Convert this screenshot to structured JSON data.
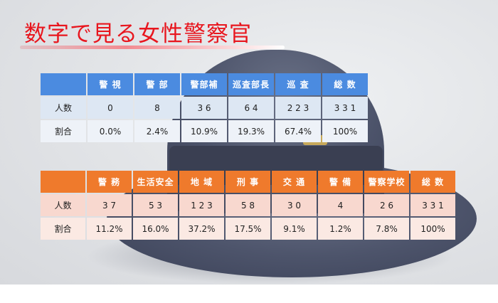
{
  "title": "数字で見る女性警察官",
  "rank_table": {
    "headers": [
      "警 視",
      "警 部",
      "警部補",
      "巡査部長",
      "巡 査",
      "総 数"
    ],
    "rows": [
      {
        "label": "人数",
        "values": [
          "0",
          "8",
          "3 6",
          "6 4",
          "2 2 3",
          "3 3 1"
        ]
      },
      {
        "label": "割合",
        "values": [
          "0.0%",
          "2.4%",
          "10.9%",
          "19.3%",
          "67.4%",
          "100%"
        ]
      }
    ]
  },
  "dept_table": {
    "headers": [
      "警 務",
      "生活安全",
      "地 域",
      "刑 事",
      "交 通",
      "警 備",
      "警察学校",
      "総 数"
    ],
    "rows": [
      {
        "label": "人数",
        "values": [
          "3 7",
          "5 3",
          "1 2 3",
          "5 8",
          "3 0",
          "4",
          "2 6",
          "3 3 1"
        ]
      },
      {
        "label": "割合",
        "values": [
          "11.2%",
          "16.0%",
          "37.2%",
          "17.5%",
          "9.1%",
          "1.2%",
          "7.8%",
          "100%"
        ]
      }
    ]
  },
  "colors": {
    "title": "#e8161e",
    "rank_header": "#4b8be0",
    "dept_header": "#ef7a2c"
  },
  "background_image": "police-cap-photo"
}
